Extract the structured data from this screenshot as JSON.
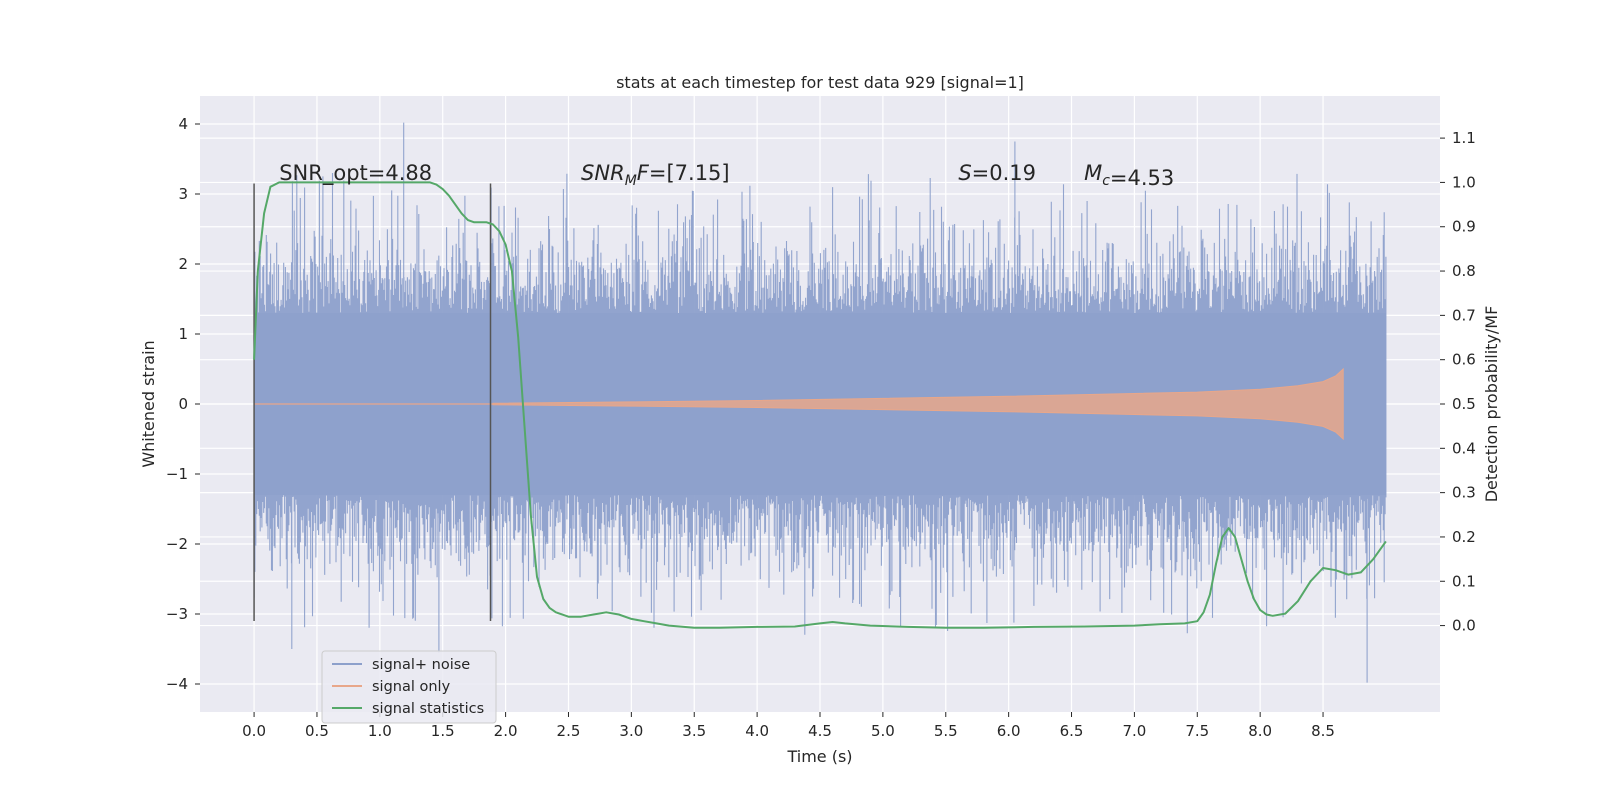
{
  "chart_data": {
    "type": "line",
    "title": "stats at each timestep for test data 929 [signal=1]",
    "xlabel": "Time (s)",
    "ylabel": "Whitened strain",
    "y2label": "Detection probability/MF",
    "xlim": [
      -0.43,
      9.43
    ],
    "ylim": [
      -4.4,
      4.4
    ],
    "y2lim": [
      -0.195,
      1.195
    ],
    "x_ticks": [
      0.0,
      0.5,
      1.0,
      1.5,
      2.0,
      2.5,
      3.0,
      3.5,
      4.0,
      4.5,
      5.0,
      5.5,
      6.0,
      6.5,
      7.0,
      7.5,
      8.0,
      8.5
    ],
    "x_tick_labels": [
      "0.0",
      "0.5",
      "1.0",
      "1.5",
      "2.0",
      "2.5",
      "3.0",
      "3.5",
      "4.0",
      "4.5",
      "5.0",
      "5.5",
      "6.0",
      "6.5",
      "7.0",
      "7.5",
      "8.0",
      "8.5"
    ],
    "y_ticks": [
      -4,
      -3,
      -2,
      -1,
      0,
      1,
      2,
      3,
      4
    ],
    "y_tick_labels": [
      "−4",
      "−3",
      "−2",
      "−1",
      "0",
      "1",
      "2",
      "3",
      "4"
    ],
    "y2_ticks": [
      0.0,
      0.1,
      0.2,
      0.3,
      0.4,
      0.5,
      0.6,
      0.7,
      0.8,
      0.9,
      1.0,
      1.1
    ],
    "y2_tick_labels": [
      "0.0",
      "0.1",
      "0.2",
      "0.3",
      "0.4",
      "0.5",
      "0.6",
      "0.7",
      "0.8",
      "0.9",
      "1.0",
      "1.1"
    ],
    "grid": true,
    "legend_position": "lower-left",
    "legend": [
      {
        "label": "signal+ noise",
        "color": "#8da0cb"
      },
      {
        "label": "signal only",
        "color": "#e8a78a"
      },
      {
        "label": "signal statistics",
        "color": "#55a868"
      }
    ],
    "series": [
      {
        "name": "signal+ noise",
        "axis": "left",
        "kind": "noise-band",
        "color": "#8da0cb",
        "x_range": [
          0.0,
          9.0
        ],
        "core_amplitude": 1.3,
        "spike_max": 4.0,
        "spike_min": -4.0,
        "notable_spikes": [
          [
            1.19,
            4.02
          ],
          [
            6.05,
            3.75
          ],
          [
            8.85,
            -3.98
          ],
          [
            0.3,
            -3.5
          ],
          [
            1.47,
            -3.55
          ]
        ]
      },
      {
        "name": "signal only",
        "axis": "left",
        "kind": "chirp-envelope",
        "color": "#e8a78a",
        "x_range": [
          1.9,
          8.66
        ],
        "envelope": {
          "x": [
            1.9,
            3.0,
            4.0,
            5.0,
            6.0,
            7.0,
            7.5,
            8.0,
            8.3,
            8.5,
            8.6,
            8.66
          ],
          "y": [
            0.01,
            0.03,
            0.05,
            0.08,
            0.11,
            0.15,
            0.17,
            0.21,
            0.26,
            0.32,
            0.4,
            0.5
          ]
        }
      },
      {
        "name": "signal statistics",
        "axis": "right",
        "color": "#55a868",
        "x": [
          0.0,
          0.03,
          0.08,
          0.13,
          0.2,
          0.3,
          0.5,
          0.8,
          1.0,
          1.2,
          1.3,
          1.4,
          1.45,
          1.5,
          1.55,
          1.6,
          1.65,
          1.7,
          1.75,
          1.8,
          1.85,
          1.9,
          1.95,
          2.0,
          2.05,
          2.1,
          2.15,
          2.2,
          2.25,
          2.3,
          2.35,
          2.4,
          2.5,
          2.6,
          2.7,
          2.8,
          2.9,
          3.0,
          3.1,
          3.2,
          3.3,
          3.5,
          3.7,
          4.0,
          4.3,
          4.5,
          4.6,
          4.7,
          4.9,
          5.2,
          5.5,
          5.8,
          6.2,
          6.6,
          7.0,
          7.2,
          7.4,
          7.5,
          7.55,
          7.6,
          7.65,
          7.7,
          7.75,
          7.8,
          7.85,
          7.9,
          7.95,
          8.0,
          8.05,
          8.1,
          8.2,
          8.3,
          8.4,
          8.5,
          8.6,
          8.7,
          8.8,
          8.9,
          9.0
        ],
        "y": [
          0.6,
          0.8,
          0.93,
          0.99,
          1.0,
          1.0,
          1.0,
          1.0,
          1.0,
          1.0,
          1.0,
          1.0,
          0.995,
          0.985,
          0.97,
          0.95,
          0.93,
          0.915,
          0.91,
          0.91,
          0.91,
          0.905,
          0.89,
          0.86,
          0.8,
          0.65,
          0.45,
          0.25,
          0.11,
          0.06,
          0.04,
          0.03,
          0.02,
          0.02,
          0.025,
          0.03,
          0.025,
          0.015,
          0.01,
          0.005,
          0.0,
          -0.005,
          -0.005,
          -0.003,
          -0.002,
          0.005,
          0.008,
          0.005,
          0.0,
          -0.003,
          -0.005,
          -0.005,
          -0.003,
          -0.002,
          0.0,
          0.003,
          0.005,
          0.01,
          0.03,
          0.07,
          0.14,
          0.2,
          0.22,
          0.2,
          0.15,
          0.1,
          0.06,
          0.035,
          0.025,
          0.022,
          0.027,
          0.055,
          0.1,
          0.13,
          0.125,
          0.115,
          0.12,
          0.15,
          0.19
        ]
      }
    ],
    "markers": [
      {
        "x": 0.0,
        "y_range": [
          -3.1,
          3.15
        ]
      },
      {
        "x": 1.88,
        "y_range": [
          -3.1,
          3.15
        ]
      }
    ],
    "annotations": [
      {
        "text": "SNR_opt=4.88",
        "x": 0.2,
        "y": 3.2
      },
      {
        "text": "SNR_MF=[7.15]",
        "x": 2.6,
        "y": 3.2
      },
      {
        "text": "S=0.19",
        "x": 5.6,
        "y": 3.2
      },
      {
        "text": "M_c=4.53",
        "x": 6.6,
        "y": 3.2
      }
    ]
  }
}
